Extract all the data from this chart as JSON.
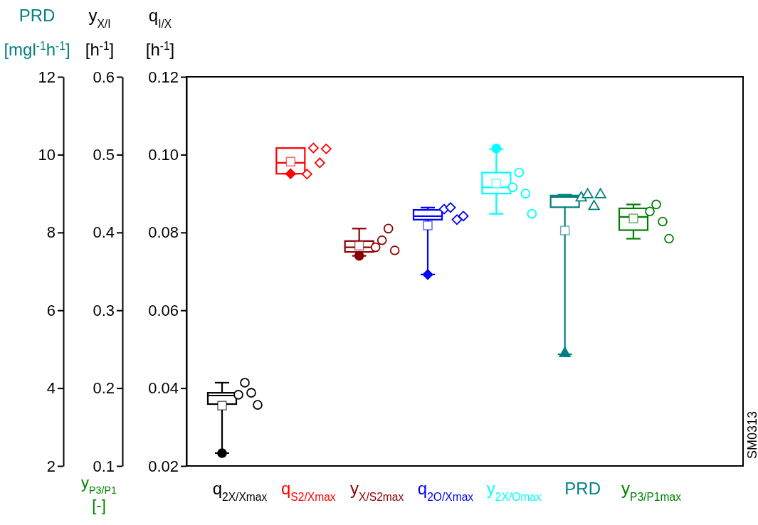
{
  "chart_data": {
    "type": "box",
    "categories": [
      "q$_{2X/Xmax}$",
      "q$_{S2/Xmax}$",
      "y$_{X/S2max}$",
      "q$_{2O/Xmax}$",
      "y$_{2X/Omax}$",
      "PRD",
      "y$_{P3/P1max}$"
    ],
    "ylabel": "q$_{I/X}$\n[h$^{-1}$]",
    "y2label": "y$_{X/I}$\n[h$^{-1}$]",
    "y3label": "PRD\n[mgl$^{-1}$h$^{-1}$]",
    "ylim": [
      0.02,
      0.12
    ],
    "yticks": [
      0.02,
      0.04,
      0.06,
      0.08,
      {
        "value": 0.1,
        "label": "0.10"
      },
      0.12
    ],
    "y2lim": [
      0.1,
      0.6
    ],
    "y2ticks": [
      0.1,
      0.2,
      0.3,
      0.4,
      0.5,
      0.6
    ],
    "y3lim": [
      2,
      12
    ],
    "y3ticks": [
      2,
      4,
      6,
      8,
      10,
      12
    ],
    "annotations": [
      "y$_{P3/P1}$\n[-]",
      "SM0313"
    ],
    "series": [
      {
        "type": "box",
        "color": "#000000",
        "axis": "y",
        "marker": "circle",
        "boxes": [
          {
            "low": 0.0233,
            "q1": 0.0359,
            "median": 0.0381,
            "q3": 0.0388,
            "high": 0.0414,
            "mean": 0.0355,
            "outliers": [
              0.0233
            ]
          },
          null,
          null,
          null,
          null,
          null,
          null
        ]
      },
      {
        "type": "scatter",
        "color": "#000000",
        "axis": "y",
        "marker": "circle",
        "x": [
          "q$_{2X/Xmax}$",
          "q$_{2X/Xmax}$",
          "q$_{2X/Xmax}$",
          "q$_{2X/Xmax}$"
        ],
        "values": [
          0.0383,
          0.0414,
          0.0388,
          0.0357
        ]
      },
      {
        "type": "box",
        "color": "#ff0000",
        "axis": "y",
        "marker": "diamond",
        "boxes": [
          null,
          {
            "low": 0.0951,
            "q1": 0.0951,
            "median": 0.0979,
            "q3": 0.1017,
            "high": 0.1017,
            "mean": 0.0982,
            "outliers": [
              0.0951
            ]
          },
          null,
          null,
          null,
          null,
          null
        ]
      },
      {
        "type": "scatter",
        "color": "#ff0000",
        "axis": "y",
        "marker": "diamond",
        "x": [
          "q$_{S2/Xmax}$",
          "q$_{S2/Xmax}$",
          "q$_{S2/Xmax}$",
          "q$_{S2/Xmax}$"
        ],
        "values": [
          0.095,
          0.1017,
          0.0979,
          0.1015
        ]
      },
      {
        "type": "box",
        "color": "#8b0000",
        "axis": "y2",
        "marker": "circle",
        "boxes": [
          null,
          null,
          {
            "low": 0.37,
            "q1": 0.375,
            "median": 0.381,
            "q3": 0.389,
            "high": 0.405,
            "mean": 0.383,
            "outliers": [
              0.37
            ]
          },
          null,
          null,
          null,
          null
        ]
      },
      {
        "type": "scatter",
        "color": "#8b0000",
        "axis": "y2",
        "marker": "circle",
        "x": [
          "y$_{X/S2max}$",
          "y$_{X/S2max}$",
          "y$_{X/S2max}$",
          "y$_{X/S2max}$"
        ],
        "values": [
          0.381,
          0.39,
          0.405,
          0.377
        ]
      },
      {
        "type": "box",
        "color": "#0000ff",
        "axis": "y",
        "marker": "diamond",
        "boxes": [
          null,
          null,
          null,
          {
            "low": 0.0692,
            "q1": 0.0833,
            "median": 0.0842,
            "q3": 0.0858,
            "high": 0.0864,
            "mean": 0.0818,
            "outliers": [
              0.0692
            ]
          },
          null,
          null,
          null
        ]
      },
      {
        "type": "scatter",
        "color": "#0000ff",
        "axis": "y",
        "marker": "diamond",
        "x": [
          "q$_{2O/Xmax}$",
          "q$_{2O/Xmax}$",
          "q$_{2O/Xmax}$",
          "q$_{2O/Xmax}$"
        ],
        "values": [
          0.086,
          0.0864,
          0.0833,
          0.0842
        ]
      },
      {
        "type": "box",
        "color": "#00ffff",
        "axis": "y2",
        "marker": "circle",
        "boxes": [
          null,
          null,
          null,
          null,
          {
            "low": 0.424,
            "q1": 0.45,
            "median": 0.458,
            "q3": 0.477,
            "high": 0.507,
            "mean": 0.463,
            "outliers": [
              0.508
            ]
          },
          null,
          null
        ]
      },
      {
        "type": "scatter",
        "color": "#00ffff",
        "axis": "y2",
        "marker": "circle",
        "x": [
          "y$_{2X/Omax}$",
          "y$_{2X/Omax}$",
          "y$_{2X/Omax}$",
          "y$_{2X/Omax}$"
        ],
        "values": [
          0.458,
          0.477,
          0.45,
          0.424
        ]
      },
      {
        "type": "box",
        "color": "#008080",
        "axis": "y3",
        "marker": "triangle",
        "boxes": [
          null,
          null,
          null,
          null,
          null,
          {
            "low": 4.87,
            "q1": 8.65,
            "median": 8.91,
            "q3": 8.95,
            "high": 8.97,
            "mean": 8.05,
            "outliers": [
              4.89
            ]
          },
          null
        ]
      },
      {
        "type": "scatter",
        "color": "#008080",
        "axis": "y3",
        "marker": "triangle",
        "x": [
          "PRD",
          "PRD",
          "PRD",
          "PRD"
        ],
        "values": [
          8.89,
          8.97,
          8.67,
          8.97
        ]
      },
      {
        "type": "box",
        "color": "#008000",
        "axis": "y2",
        "boxes": [
          null,
          null,
          null,
          null,
          null,
          null,
          {
            "low": 0.392,
            "q1": 0.403,
            "median": 0.42,
            "q3": 0.431,
            "high": 0.436,
            "mean": 0.418
          }
        ]
      },
      {
        "type": "scatter",
        "color": "#008000",
        "axis": "y2",
        "marker": "circle",
        "x": [
          "y$_{P3/P1max}$",
          "y$_{P3/P1max}$",
          "y$_{P3/P1max}$",
          "y$_{P3/P1max}$"
        ],
        "values": [
          0.427,
          0.436,
          0.414,
          0.392
        ]
      }
    ]
  }
}
